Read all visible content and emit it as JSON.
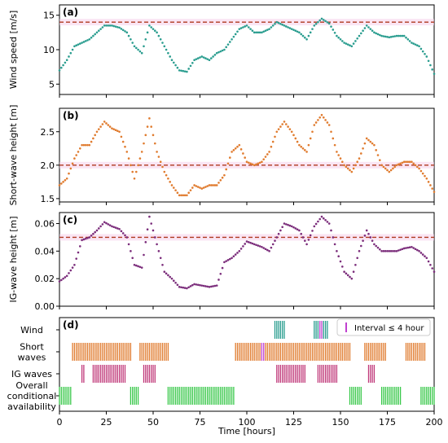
{
  "chart_data": [
    {
      "panel_label": "(a)",
      "type": "scatter",
      "ylabel": "Wind speed [m/s]",
      "ylim": [
        3.5,
        16.5
      ],
      "yticks": [
        5,
        10,
        15
      ],
      "xlim": [
        0,
        200
      ],
      "threshold": 14,
      "color": "#2a9d8f",
      "series": [
        {
          "x": [
            0,
            4,
            8,
            12,
            16,
            20,
            24,
            28,
            32,
            36,
            40,
            44,
            48,
            52,
            56,
            60,
            64,
            68,
            72,
            76,
            80,
            84,
            88,
            92,
            96,
            100,
            104,
            108,
            112,
            116,
            120,
            124,
            128,
            132,
            136,
            140,
            144,
            148,
            152,
            156,
            160,
            164,
            168,
            172,
            176,
            180,
            184,
            188,
            192,
            196,
            200
          ],
          "y": [
            7,
            8.5,
            10.5,
            11,
            11.5,
            12.5,
            13.5,
            13.5,
            13.2,
            12.5,
            10.5,
            9.5,
            13.5,
            12.5,
            10.5,
            8.5,
            7,
            6.8,
            8.5,
            9,
            8.5,
            9.5,
            10,
            11.5,
            13,
            13.5,
            12.5,
            12.5,
            13,
            14,
            13.5,
            13,
            12.5,
            11.5,
            13.5,
            14.5,
            13.8,
            12,
            11,
            10.5,
            12,
            13.5,
            12.5,
            12,
            11.8,
            12,
            12,
            11,
            10.5,
            9,
            6.5
          ]
        }
      ]
    },
    {
      "panel_label": "(b)",
      "type": "scatter",
      "ylabel": "Short-wave height [m]",
      "ylim": [
        1.45,
        2.85
      ],
      "yticks": [
        1.5,
        2.0,
        2.5
      ],
      "xlim": [
        0,
        200
      ],
      "threshold": 2.0,
      "color": "#e07b2e",
      "series": [
        {
          "x": [
            0,
            4,
            8,
            12,
            16,
            20,
            24,
            28,
            32,
            36,
            40,
            44,
            48,
            52,
            56,
            60,
            64,
            68,
            72,
            76,
            80,
            84,
            88,
            92,
            96,
            100,
            104,
            108,
            112,
            116,
            120,
            124,
            128,
            132,
            136,
            140,
            144,
            148,
            152,
            156,
            160,
            164,
            168,
            172,
            176,
            180,
            184,
            188,
            192,
            196,
            200
          ],
          "y": [
            1.7,
            1.8,
            2.1,
            2.3,
            2.3,
            2.5,
            2.65,
            2.55,
            2.5,
            2.2,
            1.8,
            2.2,
            2.7,
            2.2,
            1.9,
            1.7,
            1.55,
            1.55,
            1.7,
            1.65,
            1.7,
            1.7,
            1.85,
            2.2,
            2.3,
            2.05,
            2.0,
            2.05,
            2.2,
            2.5,
            2.65,
            2.5,
            2.3,
            2.2,
            2.6,
            2.75,
            2.6,
            2.2,
            2.0,
            1.9,
            2.1,
            2.4,
            2.3,
            2.0,
            1.9,
            2.0,
            2.05,
            2.05,
            1.95,
            1.8,
            1.6
          ]
        }
      ]
    },
    {
      "panel_label": "(c)",
      "type": "scatter",
      "ylabel": "IG-wave height [m]",
      "ylim": [
        0.0,
        0.068
      ],
      "yticks": [
        0.0,
        0.02,
        0.04,
        0.06
      ],
      "xlim": [
        0,
        200
      ],
      "threshold": 0.05,
      "color": "#7b2d7b",
      "series": [
        {
          "x": [
            0,
            4,
            8,
            12,
            16,
            20,
            24,
            28,
            32,
            36,
            40,
            44,
            48,
            52,
            56,
            60,
            64,
            68,
            72,
            76,
            80,
            84,
            88,
            92,
            96,
            100,
            104,
            108,
            112,
            116,
            120,
            124,
            128,
            132,
            136,
            140,
            144,
            148,
            152,
            156,
            160,
            164,
            168,
            172,
            176,
            180,
            184,
            188,
            192,
            196,
            200
          ],
          "y": [
            0.018,
            0.022,
            0.03,
            0.048,
            0.05,
            0.055,
            0.061,
            0.058,
            0.056,
            0.05,
            0.03,
            0.028,
            0.065,
            0.045,
            0.025,
            0.02,
            0.014,
            0.013,
            0.016,
            0.015,
            0.014,
            0.015,
            0.032,
            0.035,
            0.04,
            0.047,
            0.045,
            0.043,
            0.04,
            0.05,
            0.06,
            0.058,
            0.055,
            0.045,
            0.058,
            0.065,
            0.06,
            0.04,
            0.025,
            0.02,
            0.04,
            0.055,
            0.045,
            0.04,
            0.04,
            0.04,
            0.042,
            0.043,
            0.04,
            0.035,
            0.025
          ]
        }
      ]
    },
    {
      "panel_label": "(d)",
      "type": "bar",
      "xlabel": "Time [hours]",
      "xlim": [
        0,
        200
      ],
      "xticks": [
        0,
        25,
        50,
        75,
        100,
        125,
        150,
        175,
        200
      ],
      "categories": [
        "Wind",
        "Short waves",
        "IG waves",
        "Overall conditional availability"
      ],
      "category_lines": [
        [
          "Wind"
        ],
        [
          "Short",
          "waves"
        ],
        [
          "IG waves"
        ],
        [
          "Overall",
          "conditional",
          "availability"
        ]
      ],
      "legend": "Interval ≤ 4 hour",
      "interval_color": "#c040d0",
      "series": [
        {
          "name": "Wind",
          "color": "#2a9d8f",
          "available_intervals": [
            [
              115,
              120
            ],
            [
              136,
              143
            ]
          ],
          "short_interval_hours": [
            139,
            140
          ]
        },
        {
          "name": "Short waves",
          "color": "#e07b2e",
          "available_intervals": [
            [
              7,
              38
            ],
            [
              43,
              58
            ],
            [
              94,
              155
            ],
            [
              163,
              174
            ],
            [
              185,
              195
            ]
          ],
          "short_interval_hours": [
            108,
            109
          ]
        },
        {
          "name": "IG waves",
          "color": "#c0397a",
          "available_intervals": [
            [
              12,
              13
            ],
            [
              18,
              35
            ],
            [
              45,
              51
            ],
            [
              116,
              131
            ],
            [
              138,
              148
            ],
            [
              165,
              168
            ]
          ],
          "short_interval_hours": []
        },
        {
          "name": "Overall conditional availability",
          "color": "#39c84a",
          "available_intervals": [
            [
              0,
              6
            ],
            [
              38,
              42
            ],
            [
              58,
              93
            ],
            [
              155,
              161
            ],
            [
              172,
              182
            ],
            [
              193,
              200
            ]
          ],
          "short_interval_hours": []
        }
      ]
    }
  ]
}
